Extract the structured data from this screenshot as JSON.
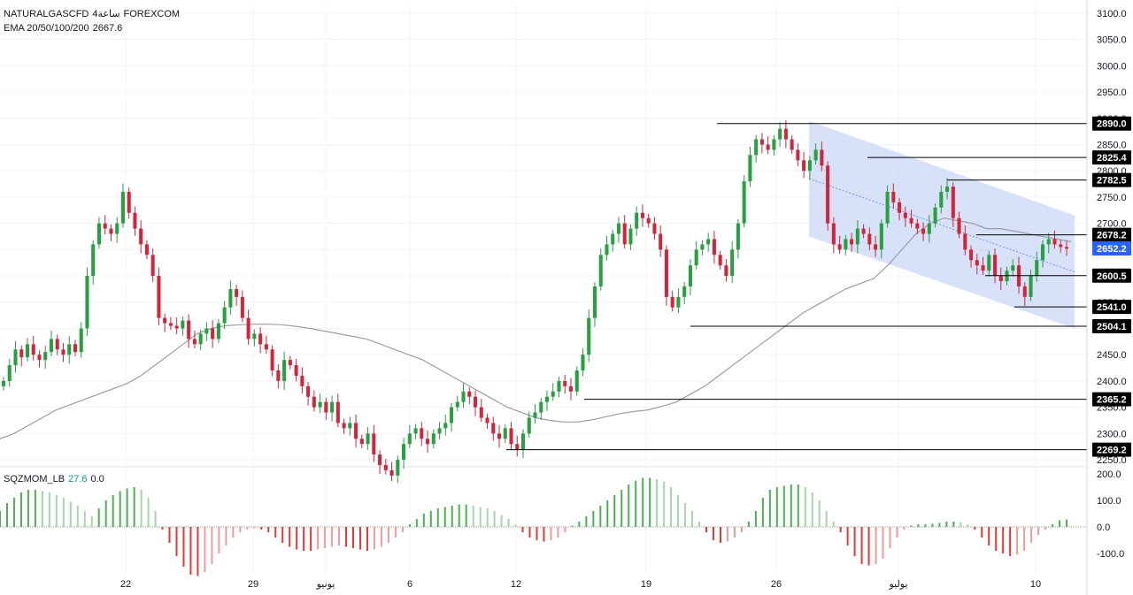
{
  "header": {
    "symbol": "NATURALGASCFD",
    "interval": "4ساعة",
    "exchange": "FOREXCOM",
    "indicator_name": "EMA 20/50/100/200",
    "indicator_value": "2667.6"
  },
  "lower_panel": {
    "indicator_name": "SQZMOM_LB",
    "value_1": "27.6",
    "value_2": "0.0"
  },
  "colors": {
    "background": "#ffffff",
    "bull": "#26a041",
    "bear": "#d1253b",
    "ema": "#9e9e9e",
    "channel": "#c9d7f5",
    "level_line": "#000000",
    "tag_bg": "#000000",
    "last_price_tag": "#2962ff",
    "mom_bull_strong": "#4caf50",
    "mom_bull_weak": "#a5d6a7",
    "mom_bear_strong": "#e53935",
    "mom_bear_weak": "#ef9a9a"
  },
  "chart_data": [
    {
      "type": "candlestick",
      "title": "",
      "price_axis": {
        "ticks": [
          "3100.0",
          "3050.0",
          "3000.0",
          "2950.0",
          "2900.0",
          "2850.0",
          "2800.0",
          "2750.0",
          "2700.0",
          "2650.0",
          "2600.0",
          "2550.0",
          "2500.0",
          "2450.0",
          "2400.0",
          "2350.0",
          "2300.0",
          "2250.0"
        ],
        "tick_values": [
          3100,
          3050,
          3000,
          2950,
          2900,
          2850,
          2800,
          2750,
          2700,
          2650,
          2600,
          2550,
          2500,
          2450,
          2400,
          2350,
          2300,
          2250
        ],
        "ylim": [
          2240,
          3115
        ]
      },
      "date_axis": {
        "labels": [
          "22",
          "29",
          "يونيو",
          "6",
          "12",
          "19",
          "26",
          "يوليو",
          "10"
        ]
      },
      "levels": [
        {
          "value": 2890.0,
          "label": "2890.0"
        },
        {
          "value": 2825.4,
          "label": "2825.4"
        },
        {
          "value": 2782.5,
          "label": "2782.5"
        },
        {
          "value": 2678.2,
          "label": "2678.2"
        },
        {
          "value": 2600.5,
          "label": "2600.5"
        },
        {
          "value": 2541.0,
          "label": "2541.0"
        },
        {
          "value": 2504.1,
          "label": "2504.1"
        },
        {
          "value": 2365.2,
          "label": "2365.2"
        },
        {
          "value": 2269.2,
          "label": "2269.2"
        }
      ],
      "last_price": {
        "value": 2652.2,
        "label": "2652.2"
      },
      "channel": {
        "upper_start": 2895,
        "upper_end": 2715,
        "lower_start": 2675,
        "lower_end": 2500
      },
      "close_series": [
        2400,
        2430,
        2460,
        2445,
        2470,
        2450,
        2440,
        2455,
        2480,
        2460,
        2450,
        2470,
        2455,
        2500,
        2600,
        2660,
        2700,
        2690,
        2680,
        2700,
        2760,
        2720,
        2690,
        2660,
        2640,
        2600,
        2520,
        2510,
        2505,
        2500,
        2515,
        2480,
        2470,
        2490,
        2500,
        2480,
        2510,
        2540,
        2575,
        2560,
        2520,
        2480,
        2490,
        2470,
        2460,
        2420,
        2400,
        2440,
        2430,
        2410,
        2390,
        2370,
        2350,
        2360,
        2340,
        2360,
        2320,
        2310,
        2320,
        2290,
        2280,
        2300,
        2260,
        2240,
        2230,
        2220,
        2250,
        2280,
        2300,
        2310,
        2290,
        2280,
        2300,
        2310,
        2320,
        2350,
        2360,
        2380,
        2370,
        2350,
        2330,
        2320,
        2300,
        2290,
        2310,
        2280,
        2270,
        2300,
        2330,
        2340,
        2360,
        2370,
        2380,
        2400,
        2390,
        2380,
        2420,
        2450,
        2520,
        2580,
        2640,
        2660,
        2680,
        2700,
        2660,
        2690,
        2720,
        2710,
        2700,
        2680,
        2650,
        2560,
        2540,
        2560,
        2580,
        2620,
        2650,
        2660,
        2670,
        2640,
        2620,
        2600,
        2650,
        2700,
        2780,
        2830,
        2860,
        2850,
        2840,
        2860,
        2880,
        2860,
        2840,
        2820,
        2800,
        2820,
        2840,
        2810,
        2700,
        2660,
        2650,
        2670,
        2660,
        2690,
        2680,
        2660,
        2650,
        2700,
        2760,
        2740,
        2720,
        2710,
        2700,
        2690,
        2680,
        2700,
        2730,
        2760,
        2770,
        2710,
        2680,
        2650,
        2630,
        2620,
        2610,
        2640,
        2600,
        2590,
        2610,
        2620,
        2580,
        2560,
        2600,
        2630,
        2660,
        2670,
        2660,
        2655,
        2652
      ],
      "ema_series": [
        2290,
        2300,
        2315,
        2330,
        2345,
        2355,
        2365,
        2375,
        2385,
        2395,
        2410,
        2430,
        2450,
        2470,
        2490,
        2500,
        2505,
        2507,
        2508,
        2508,
        2507,
        2504,
        2500,
        2495,
        2490,
        2485,
        2480,
        2470,
        2460,
        2450,
        2440,
        2425,
        2410,
        2395,
        2380,
        2365,
        2350,
        2340,
        2330,
        2325,
        2322,
        2322,
        2326,
        2332,
        2338,
        2342,
        2345,
        2352,
        2360,
        2375,
        2390,
        2410,
        2430,
        2450,
        2470,
        2490,
        2510,
        2530,
        2545,
        2560,
        2575,
        2585,
        2595,
        2620,
        2650,
        2680,
        2700,
        2710,
        2705,
        2700,
        2690,
        2690,
        2685,
        2680,
        2675,
        2670,
        2665
      ],
      "levels_geometry_note": ""
    },
    {
      "type": "bar",
      "title": "",
      "price_axis": {
        "ticks": [
          "200.0",
          "100.0",
          "0.0",
          "-100.0"
        ],
        "tick_values": [
          200,
          100,
          0,
          -100
        ],
        "ylim": [
          -180,
          220
        ]
      },
      "values": [
        60,
        90,
        110,
        130,
        140,
        140,
        135,
        130,
        120,
        110,
        95,
        80,
        60,
        40,
        70,
        100,
        120,
        135,
        145,
        150,
        140,
        110,
        60,
        -10,
        -60,
        -110,
        -150,
        -180,
        -185,
        -170,
        -140,
        -100,
        -70,
        -40,
        -20,
        -10,
        -5,
        -10,
        -20,
        -40,
        -60,
        -75,
        -85,
        -90,
        -90,
        -85,
        -80,
        -75,
        -70,
        -75,
        -80,
        -85,
        -90,
        -85,
        -75,
        -60,
        -40,
        -20,
        10,
        30,
        50,
        60,
        70,
        75,
        80,
        85,
        85,
        80,
        75,
        70,
        60,
        45,
        30,
        10,
        -20,
        -40,
        -50,
        -55,
        -50,
        -40,
        -20,
        5,
        20,
        40,
        60,
        80,
        100,
        120,
        140,
        160,
        175,
        185,
        185,
        180,
        170,
        150,
        120,
        90,
        60,
        20,
        -20,
        -50,
        -60,
        -55,
        -40,
        -20,
        20,
        60,
        110,
        140,
        150,
        155,
        160,
        160,
        150,
        130,
        100,
        60,
        20,
        -20,
        -70,
        -110,
        -140,
        -145,
        -140,
        -120,
        -80,
        -40,
        -10,
        5,
        10,
        10,
        12,
        15,
        20,
        20,
        18,
        10,
        -10,
        -40,
        -70,
        -90,
        -100,
        -110,
        -105,
        -90,
        -60,
        -30,
        -10,
        10,
        25,
        28
      ]
    }
  ]
}
